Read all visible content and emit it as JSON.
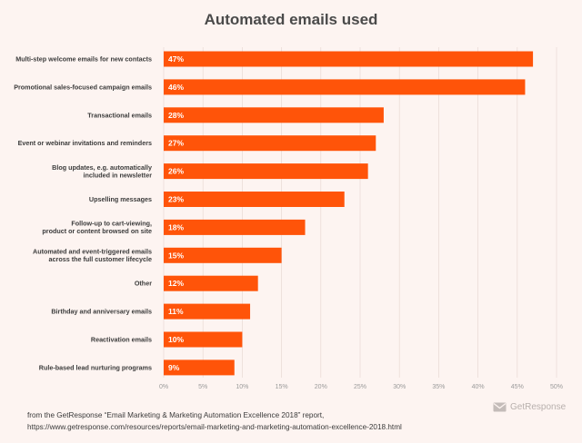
{
  "chart_data": {
    "type": "bar",
    "orientation": "horizontal",
    "title": "Automated emails used",
    "xlim": [
      0,
      50
    ],
    "x_ticks": [
      "0%",
      "5%",
      "10%",
      "15%",
      "20%",
      "25%",
      "30%",
      "35%",
      "40%",
      "45%",
      "50%"
    ],
    "grid": true,
    "categories": [
      "Multi-step welcome emails for new contacts",
      "Promotional sales-focused campaign emails",
      "Transactional emails",
      "Event or webinar invitations and reminders",
      "Blog updates, e.g. automatically included in newsletter",
      "Upselling messages",
      "Follow-up to cart-viewing, product or content browsed on site",
      "Automated and event-triggered emails across the full customer lifecycle",
      "Other",
      "Birthday and anniversary emails",
      "Reactivation emails",
      "Rule-based lead nurturing programs"
    ],
    "category_lines": [
      [
        "Multi-step welcome emails for new contacts"
      ],
      [
        "Promotional sales-focused campaign emails"
      ],
      [
        "Transactional emails"
      ],
      [
        "Event or webinar invitations and reminders"
      ],
      [
        "Blog updates, e.g. automatically",
        "included in newsletter"
      ],
      [
        "Upselling messages"
      ],
      [
        "Follow-up to cart-viewing,",
        "product or content browsed on site"
      ],
      [
        "Automated and event-triggered emails",
        "across the full customer lifecycle"
      ],
      [
        "Other"
      ],
      [
        "Birthday and anniversary emails"
      ],
      [
        "Reactivation emails"
      ],
      [
        "Rule-based lead nurturing programs"
      ]
    ],
    "values": [
      47,
      46,
      28,
      27,
      26,
      23,
      18,
      15,
      12,
      11,
      10,
      9
    ],
    "value_labels": [
      "47%",
      "46%",
      "28%",
      "27%",
      "26%",
      "23%",
      "18%",
      "15%",
      "12%",
      "11%",
      "10%",
      "9%"
    ],
    "bar_color": "#ff5409",
    "grid_color": "#e8d9d4"
  },
  "footer": {
    "line1": "from the GetResponse “Email Marketing & Marketing Automation Excellence 2018” report,",
    "line2": "https://www.getresponse.com/resources/reports/email-marketing-and-marketing-automation-excellence-2018.html"
  },
  "brand": {
    "name": "GetResponse",
    "icon": "envelope-icon"
  }
}
